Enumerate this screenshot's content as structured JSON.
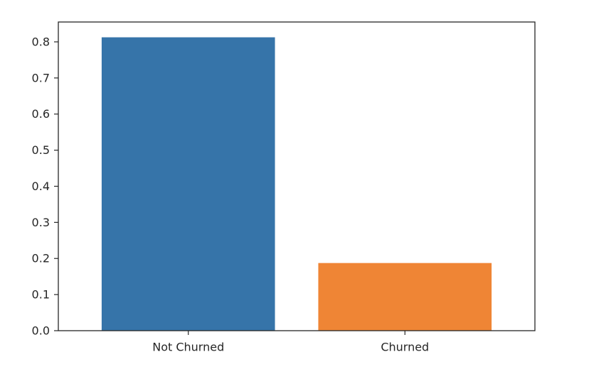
{
  "chart_data": {
    "type": "bar",
    "title": "",
    "xlabel": "",
    "ylabel": "",
    "categories": [
      "Not Churned",
      "Churned"
    ],
    "values": [
      0.8126,
      0.1874
    ],
    "colors": [
      "#3674a9",
      "#ef8535"
    ],
    "ylim": [
      0,
      0.855
    ],
    "yticks": [
      0.0,
      0.1,
      0.2,
      0.3,
      0.4,
      0.5,
      0.6,
      0.7,
      0.8
    ],
    "ytick_labels": [
      "0.0",
      "0.1",
      "0.2",
      "0.3",
      "0.4",
      "0.5",
      "0.6",
      "0.7",
      "0.8"
    ],
    "grid": false,
    "legend": "none"
  }
}
